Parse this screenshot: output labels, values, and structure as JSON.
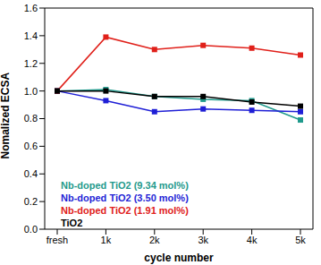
{
  "chart_data": {
    "type": "line",
    "x_label": "cycle number",
    "y_label": "Nomalized ECSA",
    "categories": [
      "fresh",
      "1k",
      "2k",
      "3k",
      "4k",
      "5k"
    ],
    "series": [
      {
        "name": "Nb-doped TiO2 (9.34 mol%)",
        "color": "#1f9a8c",
        "marker": "square",
        "values": [
          1.0,
          1.01,
          0.96,
          0.94,
          0.93,
          0.79
        ]
      },
      {
        "name": "Nb-doped TiO2 (3.50 mol%)",
        "color": "#1f1fd6",
        "marker": "square",
        "values": [
          1.0,
          0.93,
          0.85,
          0.87,
          0.86,
          0.85
        ]
      },
      {
        "name": "Nb-doped TiO2 (1.91 mol%)",
        "color": "#e0201a",
        "marker": "square",
        "values": [
          1.0,
          1.39,
          1.3,
          1.33,
          1.31,
          1.26
        ]
      },
      {
        "name": "TiO2",
        "color": "#000000",
        "marker": "square",
        "values": [
          1.0,
          1.0,
          0.96,
          0.96,
          0.92,
          0.89
        ]
      }
    ],
    "ylim": [
      0,
      1.6
    ],
    "yticks": [
      {
        "value": 0,
        "label": "0.0"
      },
      {
        "value": 0.2,
        "label": "0.2"
      },
      {
        "value": 0.4,
        "label": "0.4"
      },
      {
        "value": 0.6,
        "label": "0.6"
      },
      {
        "value": 0.8,
        "label": "0.8"
      },
      {
        "value": 1.0,
        "label": "1.0"
      },
      {
        "value": 1.2,
        "label": "1.2"
      },
      {
        "value": 1.4,
        "label": "1.4"
      },
      {
        "value": 1.6,
        "label": "1.6"
      }
    ],
    "grid": false,
    "legend": "lower left"
  }
}
